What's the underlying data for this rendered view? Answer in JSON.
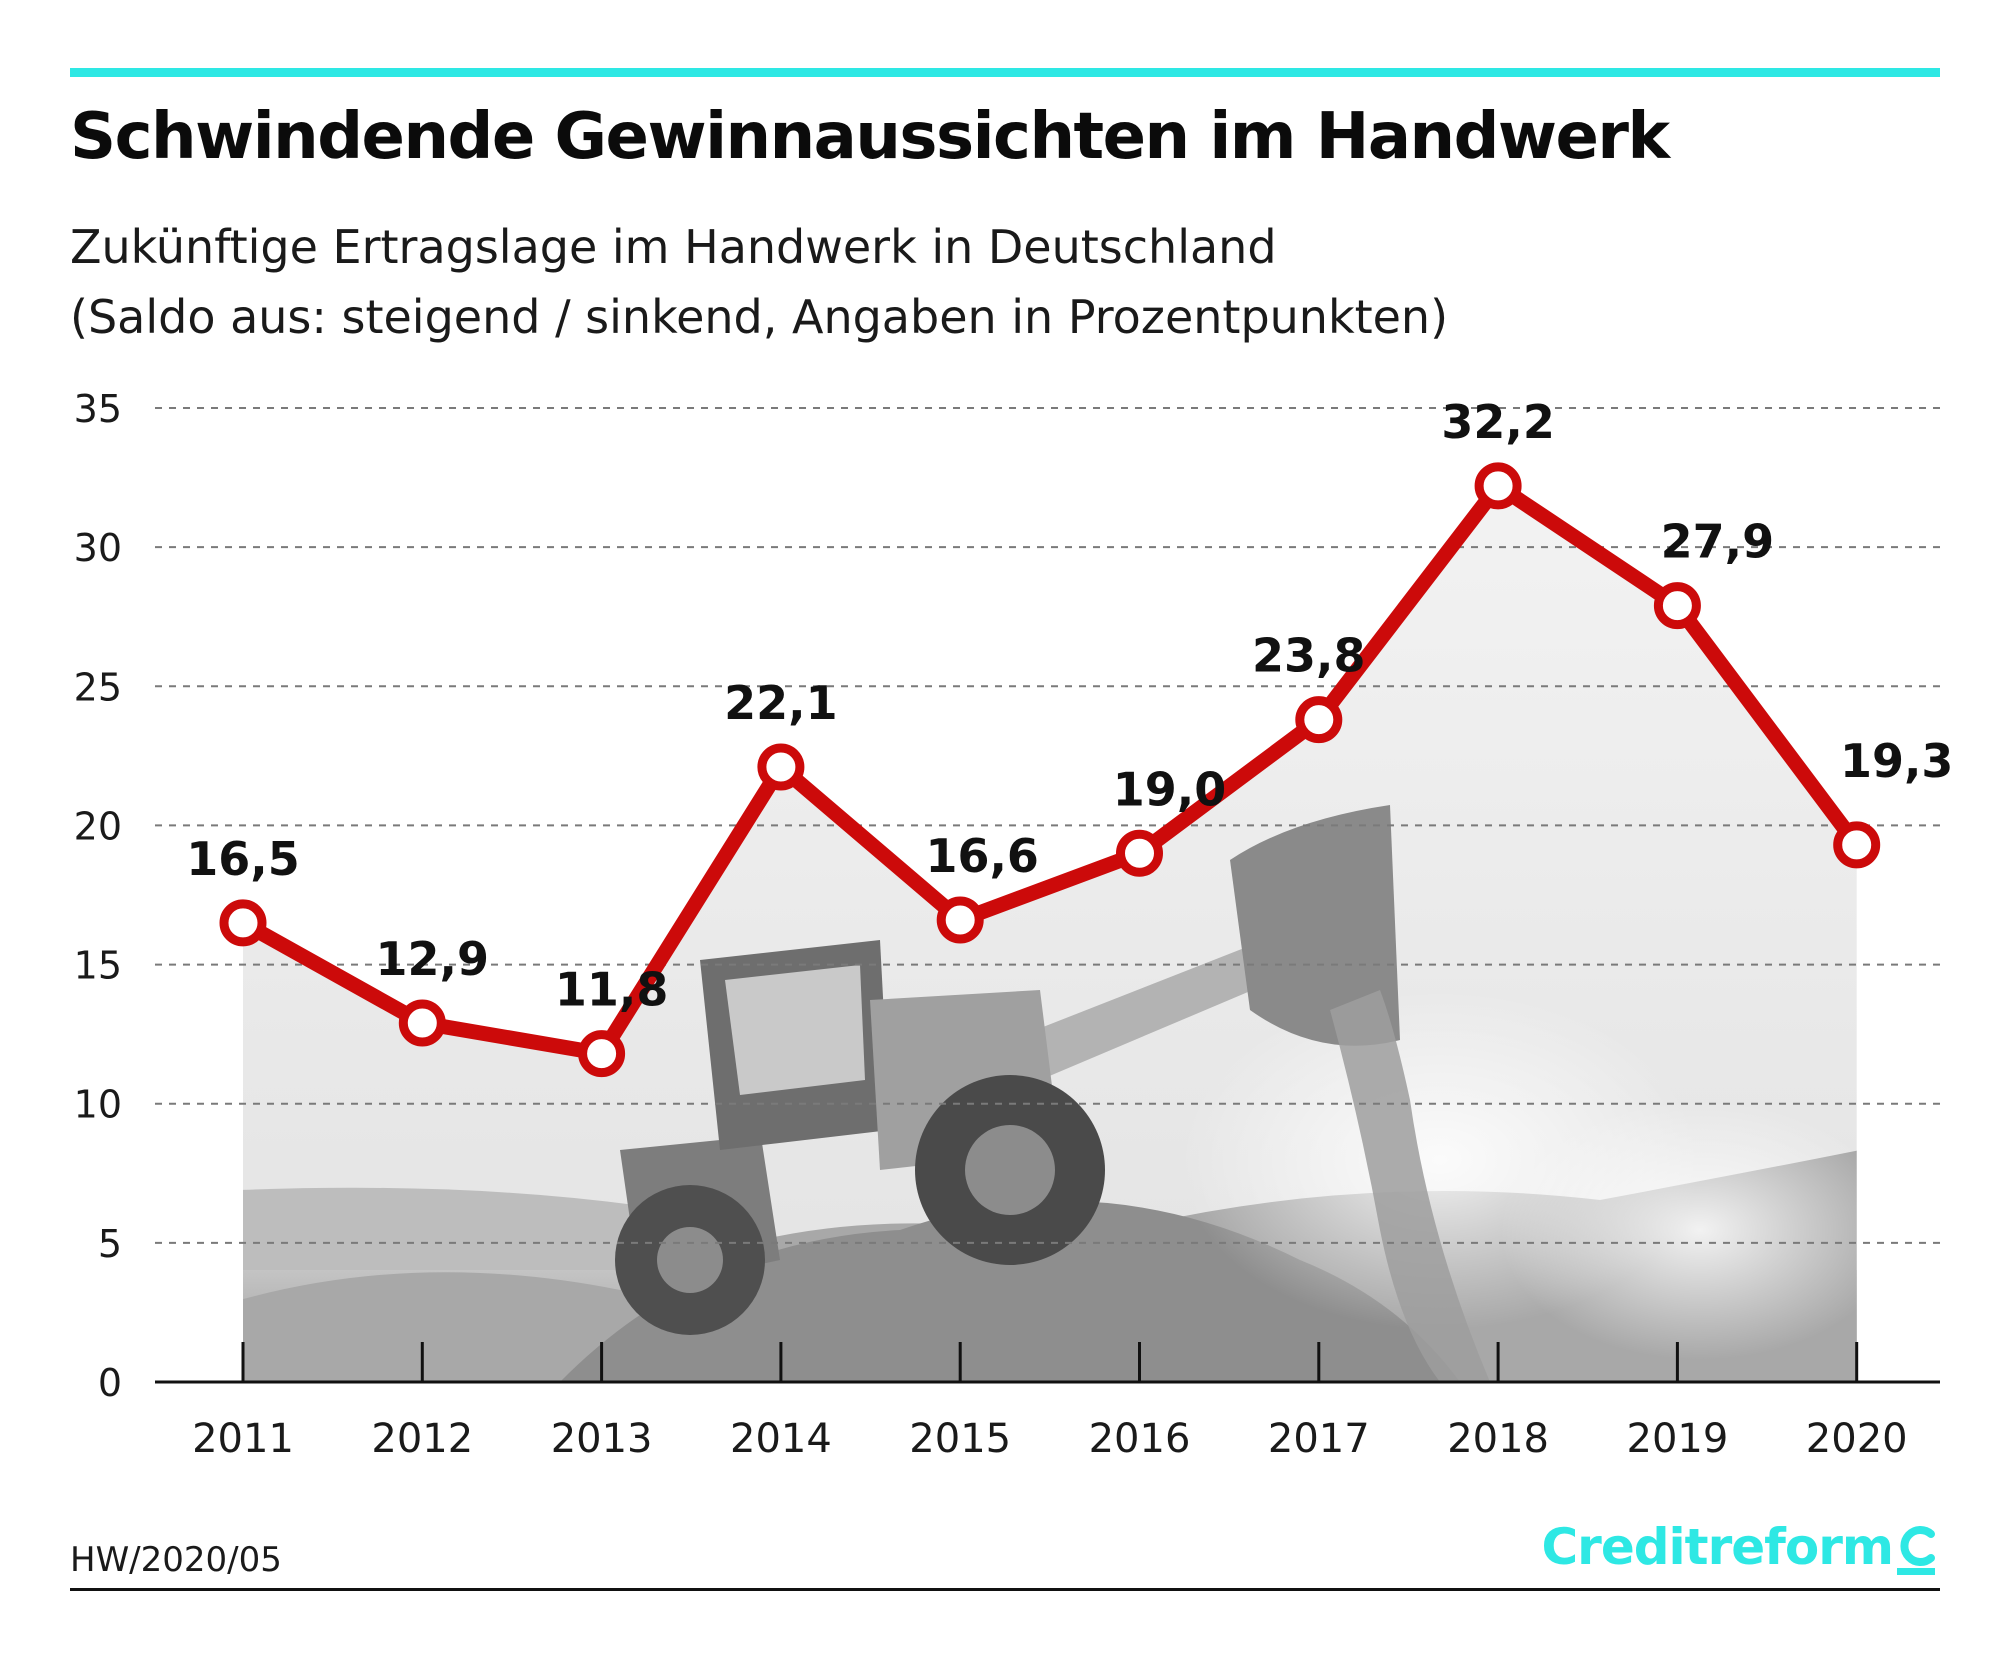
{
  "header": {
    "title": "Schwindende Gewinnaussichten im Handwerk",
    "subtitle_line1": "Zukünftige Ertragslage im Handwerk in Deutschland",
    "subtitle_line2": "(Saldo aus: steigend / sinkend, Angaben in Prozentpunkten)"
  },
  "chart_data": {
    "type": "line",
    "title": "Schwindende Gewinnaussichten im Handwerk",
    "subtitle": "Zukünftige Ertragslage im Handwerk in Deutschland (Saldo aus: steigend / sinkend, Angaben in Prozentpunkten)",
    "xlabel": "",
    "ylabel": "",
    "categories": [
      "2011",
      "2012",
      "2013",
      "2014",
      "2015",
      "2016",
      "2017",
      "2018",
      "2019",
      "2020"
    ],
    "values": [
      16.5,
      12.9,
      11.8,
      22.1,
      16.6,
      19.0,
      23.8,
      32.2,
      27.9,
      19.3
    ],
    "value_labels": [
      "16,5",
      "12,9",
      "11,8",
      "22,1",
      "16,6",
      "19,0",
      "23,8",
      "32,2",
      "27,9",
      "19,3"
    ],
    "ylim": [
      0,
      35
    ],
    "yticks": [
      0,
      5,
      10,
      15,
      20,
      25,
      30,
      35
    ],
    "grid": true,
    "line_color": "#cc0a0a",
    "background_image": "wheel-loader-photo"
  },
  "footer": {
    "source": "HW/2020/05",
    "brand": "Creditreform"
  },
  "colors": {
    "accent": "#2ee8e4",
    "line": "#cc0a0a",
    "text": "#111111"
  }
}
